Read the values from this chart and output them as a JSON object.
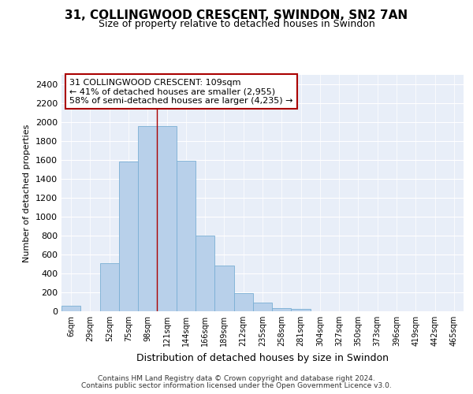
{
  "title_line1": "31, COLLINGWOOD CRESCENT, SWINDON, SN2 7AN",
  "title_line2": "Size of property relative to detached houses in Swindon",
  "xlabel": "Distribution of detached houses by size in Swindon",
  "ylabel": "Number of detached properties",
  "bar_color": "#b8d0ea",
  "bar_edge_color": "#7aafd4",
  "background_color": "#e8eef8",
  "annotation_box_edgecolor": "#aa0000",
  "annotation_text_line1": "31 COLLINGWOOD CRESCENT: 109sqm",
  "annotation_text_line2": "← 41% of detached houses are smaller (2,955)",
  "annotation_text_line3": "58% of semi-detached houses are larger (4,235) →",
  "footer_line1": "Contains HM Land Registry data © Crown copyright and database right 2024.",
  "footer_line2": "Contains public sector information licensed under the Open Government Licence v3.0.",
  "categories": [
    "6sqm",
    "29sqm",
    "52sqm",
    "75sqm",
    "98sqm",
    "121sqm",
    "144sqm",
    "166sqm",
    "189sqm",
    "212sqm",
    "235sqm",
    "258sqm",
    "281sqm",
    "304sqm",
    "327sqm",
    "350sqm",
    "373sqm",
    "396sqm",
    "419sqm",
    "442sqm",
    "465sqm"
  ],
  "values": [
    55,
    0,
    510,
    1580,
    1955,
    1955,
    1590,
    800,
    480,
    190,
    90,
    35,
    28,
    0,
    0,
    0,
    0,
    0,
    0,
    0,
    0
  ],
  "ylim_max": 2500,
  "yticks": [
    0,
    200,
    400,
    600,
    800,
    1000,
    1200,
    1400,
    1600,
    1800,
    2000,
    2200,
    2400
  ],
  "vline_x": 4.5,
  "vline_color": "#aa0000",
  "grid_color": "white",
  "fig_width": 6.0,
  "fig_height": 5.0
}
